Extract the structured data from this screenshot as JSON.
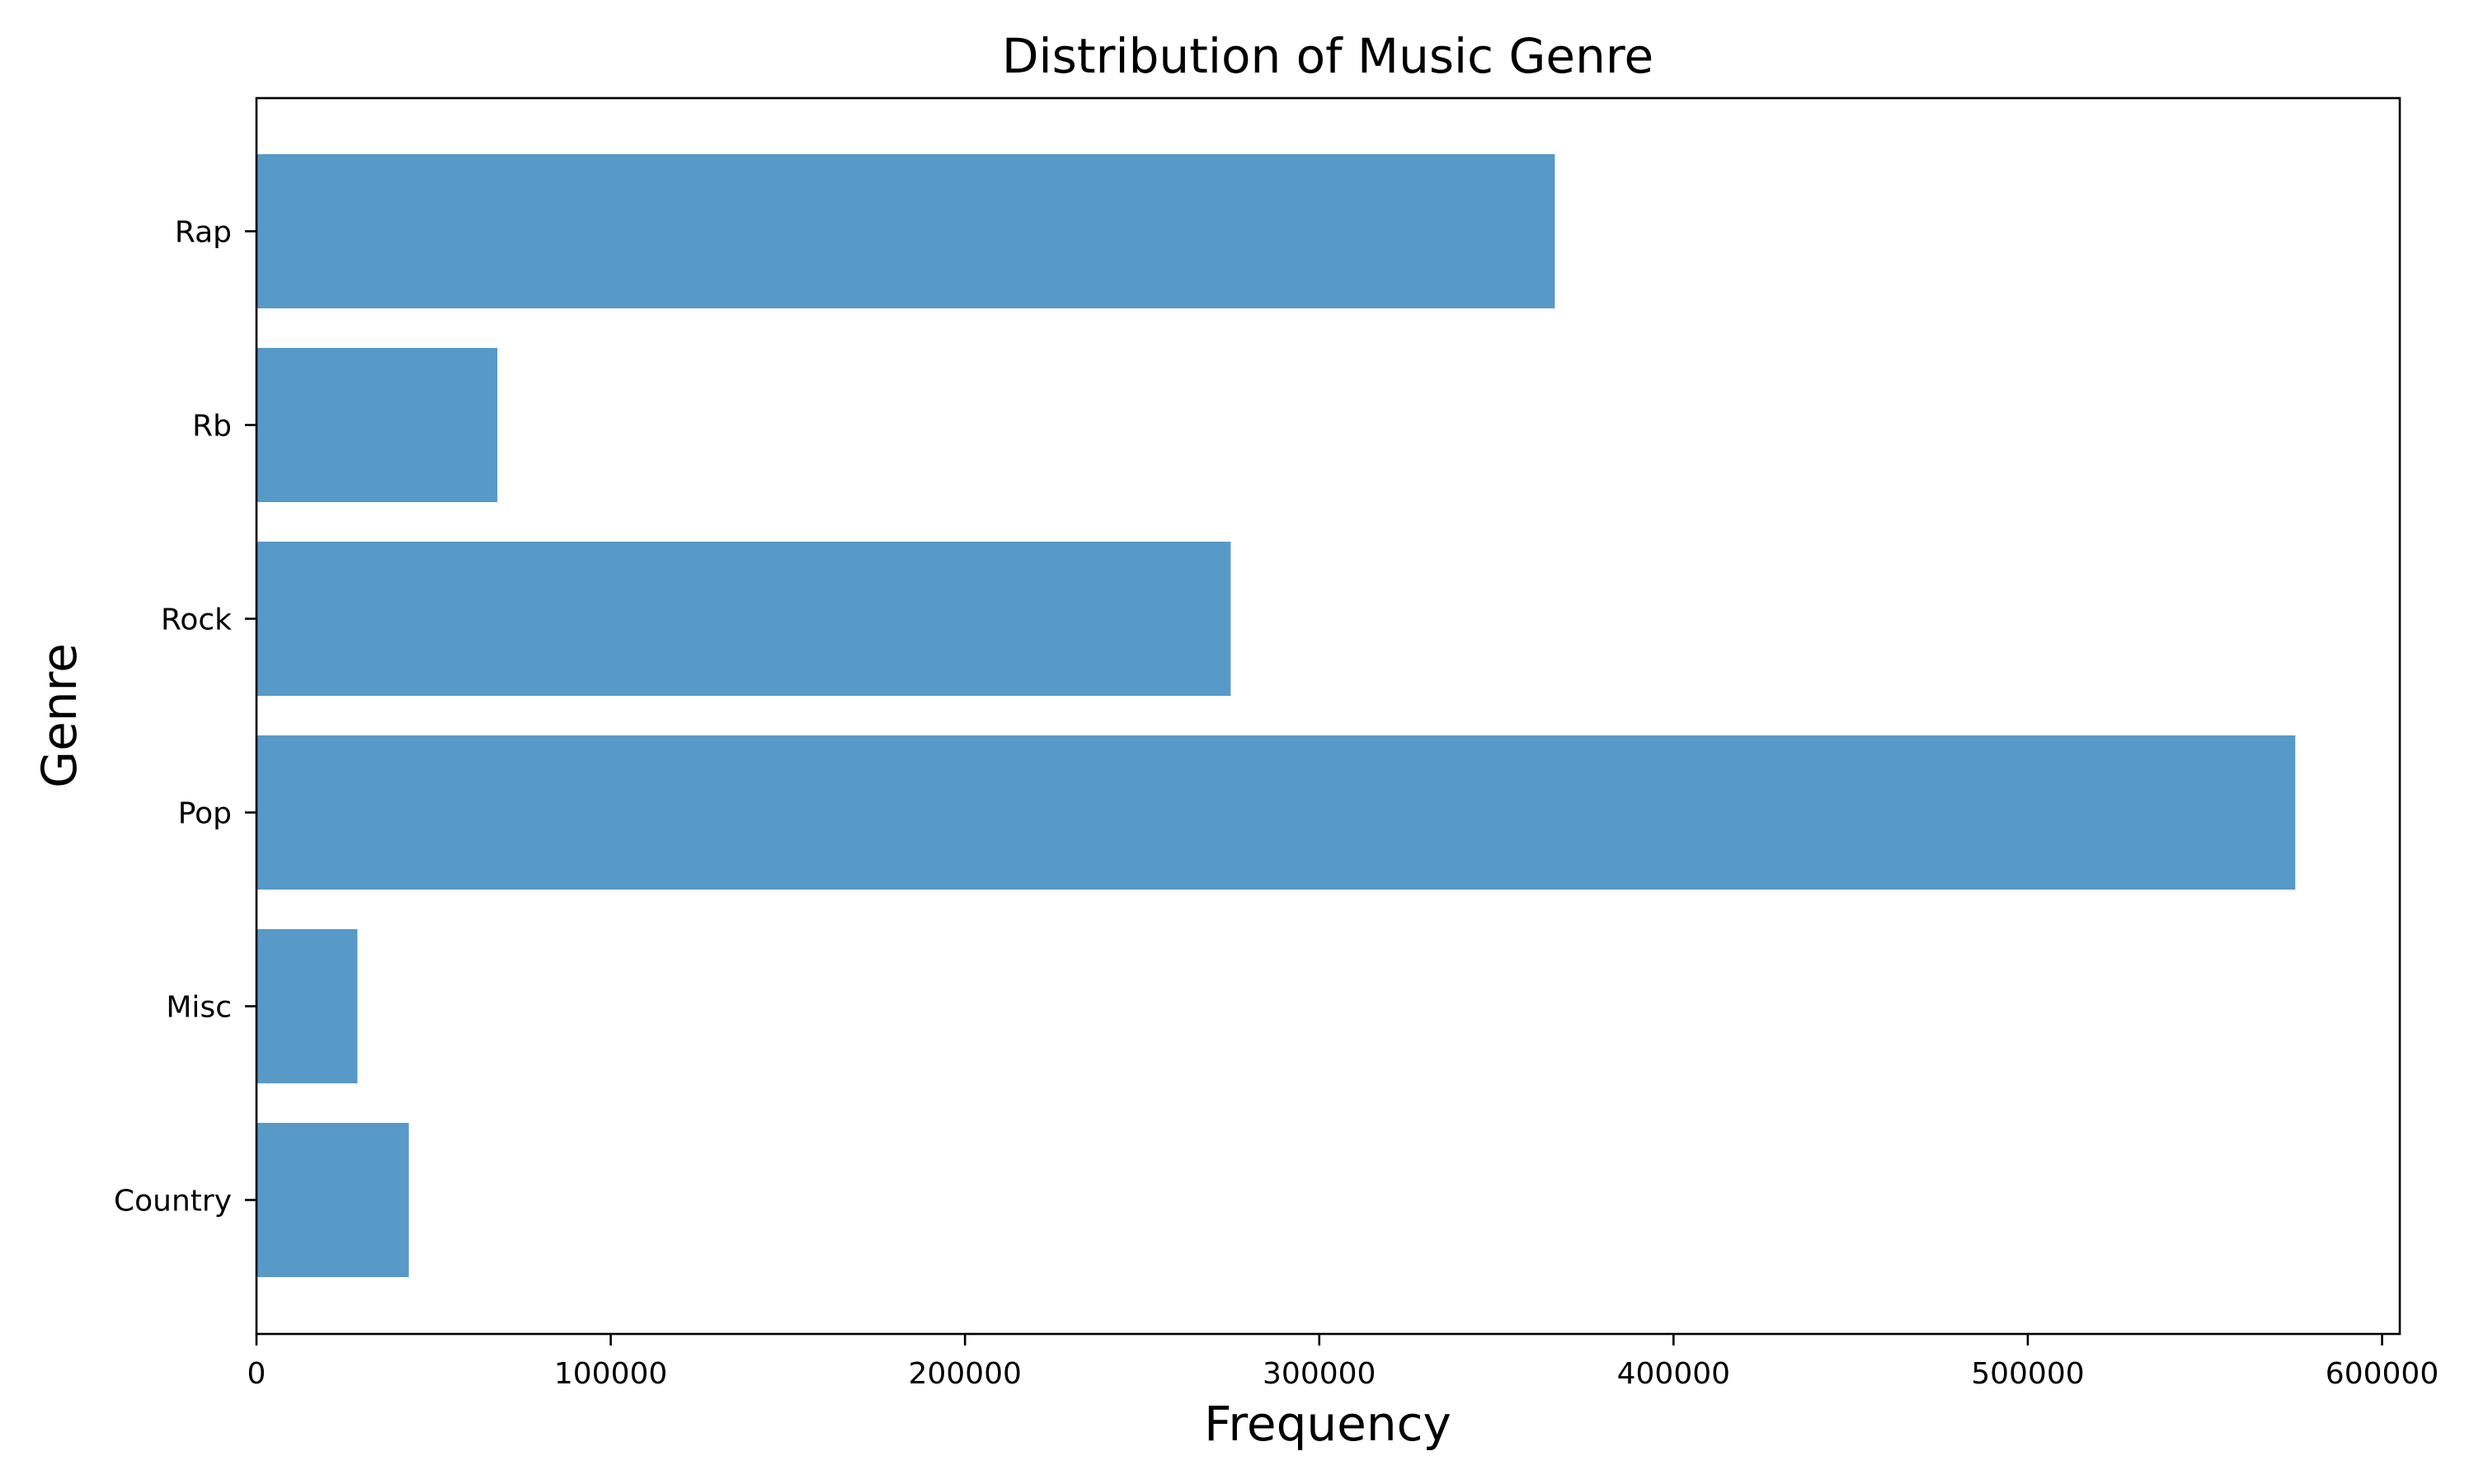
{
  "chart_data": {
    "type": "bar",
    "orientation": "horizontal",
    "title": "Distribution of Music Genre",
    "xlabel": "Frequency",
    "ylabel": "Genre",
    "categories": [
      "Country",
      "Misc",
      "Pop",
      "Rock",
      "Rb",
      "Rap"
    ],
    "values": [
      43000,
      28500,
      575500,
      275000,
      68000,
      366500
    ],
    "xlim": [
      0,
      605000
    ],
    "xticks": [
      0,
      100000,
      200000,
      300000,
      400000,
      500000,
      600000
    ],
    "xtick_labels": [
      "0",
      "100000",
      "200000",
      "300000",
      "400000",
      "500000",
      "600000"
    ],
    "grid": false,
    "legend": "none",
    "bar_color": "#5799c7"
  }
}
